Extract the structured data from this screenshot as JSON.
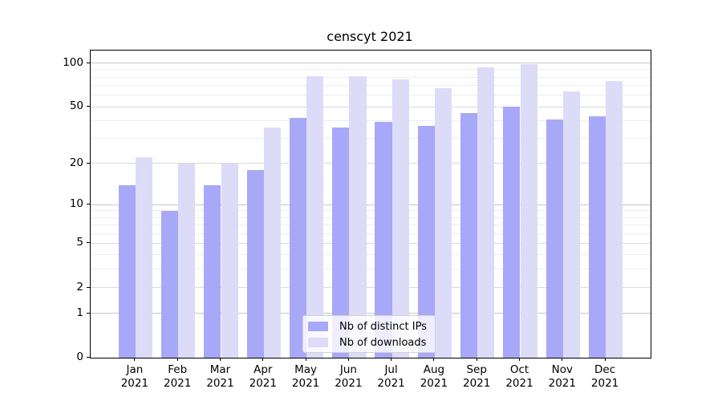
{
  "chart_data": {
    "type": "bar",
    "title": "censcyt 2021",
    "x_labels": [
      {
        "month": "Jan",
        "year": "2021"
      },
      {
        "month": "Feb",
        "year": "2021"
      },
      {
        "month": "Mar",
        "year": "2021"
      },
      {
        "month": "Apr",
        "year": "2021"
      },
      {
        "month": "May",
        "year": "2021"
      },
      {
        "month": "Jun",
        "year": "2021"
      },
      {
        "month": "Jul",
        "year": "2021"
      },
      {
        "month": "Aug",
        "year": "2021"
      },
      {
        "month": "Sep",
        "year": "2021"
      },
      {
        "month": "Oct",
        "year": "2021"
      },
      {
        "month": "Nov",
        "year": "2021"
      },
      {
        "month": "Dec",
        "year": "2021"
      }
    ],
    "series": [
      {
        "name": "Nb of distinct IPs",
        "color": "#a8a8f8",
        "values": [
          14,
          9,
          14,
          18,
          42,
          36,
          39,
          37,
          45,
          50,
          41,
          43
        ]
      },
      {
        "name": "Nb of downloads",
        "color": "#dcdcf8",
        "values": [
          22,
          20,
          20,
          36,
          81,
          81,
          77,
          67,
          93,
          98,
          64,
          75
        ]
      }
    ],
    "yscale": "log1p",
    "ylim": [
      0,
      122
    ],
    "yticks": [
      0,
      1,
      2,
      5,
      10,
      20,
      50,
      100
    ],
    "major_yticks": [
      1,
      10,
      100
    ],
    "mid_yticks": [
      2,
      5,
      20,
      50
    ],
    "minor_yticks": [
      3,
      4,
      6,
      7,
      8,
      9,
      30,
      40,
      60,
      70,
      80,
      90
    ],
    "grid": true,
    "legend_position": "lower center"
  }
}
